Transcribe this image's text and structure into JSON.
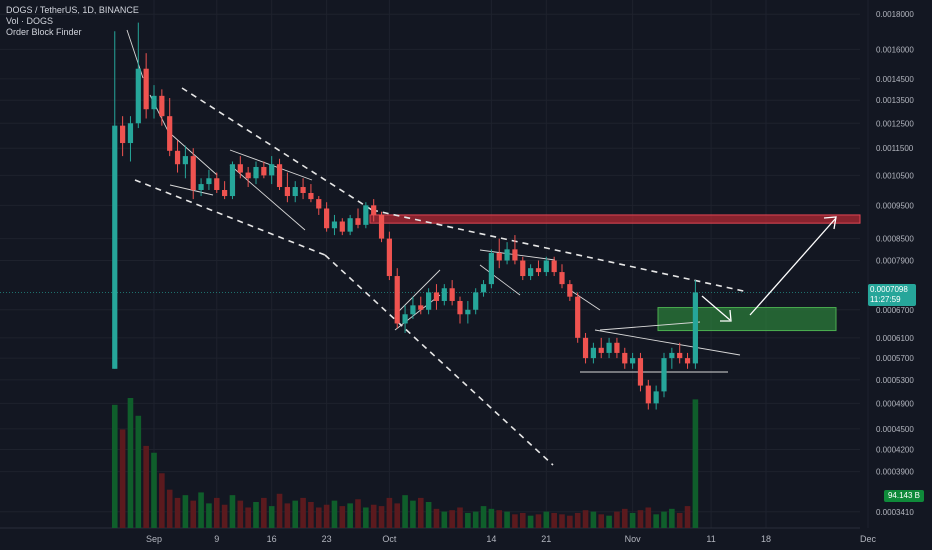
{
  "legend": {
    "symbol": "DOGS / TetherUS, 1D, BINANCE",
    "volume": "Vol · DOGS",
    "indicator": "Order Block Finder"
  },
  "colors": {
    "background": "#131722",
    "bull": "#26a69a",
    "bear": "#ef5350",
    "vol_bull": "#0f5e2b",
    "vol_bear": "#5b1a1e",
    "resistance_zone": "#b22833",
    "support_zone": "#2e8b3e"
  },
  "price_tag": {
    "price": "0.0007098",
    "countdown": "11:27:59"
  },
  "volume_tag": "94.143 B",
  "chart_data": {
    "type": "candlestick",
    "yaxis": {
      "ticks": [
        "0.0018000",
        "0.0016000",
        "0.0014500",
        "0.0013500",
        "0.0012500",
        "0.0011500",
        "0.0010500",
        "0.0009500",
        "0.0008500",
        "0.0007900",
        "0.0006700",
        "0.0006100",
        "0.0005700",
        "0.0005300",
        "0.0004900",
        "0.0004500",
        "0.0004200",
        "0.0003900",
        "0.0003410"
      ],
      "scale": "log",
      "range": [
        0.000323,
        0.00185
      ]
    },
    "xaxis": {
      "ticks": [
        "Sep",
        "9",
        "16",
        "23",
        "Oct",
        "14",
        "21",
        "Nov",
        "11",
        "18",
        "Dec"
      ]
    },
    "candles": [
      {
        "d": "2024-08-27",
        "o": 0.00055,
        "h": 0.0017,
        "l": 0.00055,
        "c": 0.00124
      },
      {
        "d": "2024-08-28",
        "o": 0.00124,
        "h": 0.00128,
        "l": 0.00112,
        "c": 0.00117
      },
      {
        "d": "2024-08-29",
        "o": 0.00117,
        "h": 0.00128,
        "l": 0.0011,
        "c": 0.00125
      },
      {
        "d": "2024-08-30",
        "o": 0.00125,
        "h": 0.00175,
        "l": 0.00123,
        "c": 0.0015
      },
      {
        "d": "2024-08-31",
        "o": 0.0015,
        "h": 0.00158,
        "l": 0.00127,
        "c": 0.00131
      },
      {
        "d": "2024-09-01",
        "o": 0.00131,
        "h": 0.00142,
        "l": 0.00127,
        "c": 0.00137
      },
      {
        "d": "2024-09-02",
        "o": 0.00137,
        "h": 0.0014,
        "l": 0.00124,
        "c": 0.00128
      },
      {
        "d": "2024-09-03",
        "o": 0.00128,
        "h": 0.00136,
        "l": 0.00112,
        "c": 0.00114
      },
      {
        "d": "2024-09-04",
        "o": 0.00114,
        "h": 0.00118,
        "l": 0.00106,
        "c": 0.00109
      },
      {
        "d": "2024-09-05",
        "o": 0.00109,
        "h": 0.00116,
        "l": 0.00104,
        "c": 0.00112
      },
      {
        "d": "2024-09-06",
        "o": 0.00112,
        "h": 0.00115,
        "l": 0.00097,
        "c": 0.001
      },
      {
        "d": "2024-09-07",
        "o": 0.001,
        "h": 0.00104,
        "l": 0.00098,
        "c": 0.00102
      },
      {
        "d": "2024-09-08",
        "o": 0.00102,
        "h": 0.00107,
        "l": 0.001,
        "c": 0.00104
      },
      {
        "d": "2024-09-09",
        "o": 0.00104,
        "h": 0.00106,
        "l": 0.00099,
        "c": 0.001
      },
      {
        "d": "2024-09-10",
        "o": 0.001,
        "h": 0.00103,
        "l": 0.00097,
        "c": 0.00098
      },
      {
        "d": "2024-09-11",
        "o": 0.00098,
        "h": 0.0011,
        "l": 0.00097,
        "c": 0.00109
      },
      {
        "d": "2024-09-12",
        "o": 0.00109,
        "h": 0.00112,
        "l": 0.00104,
        "c": 0.00106
      },
      {
        "d": "2024-09-13",
        "o": 0.00106,
        "h": 0.00108,
        "l": 0.00101,
        "c": 0.00104
      },
      {
        "d": "2024-09-14",
        "o": 0.00104,
        "h": 0.0011,
        "l": 0.00102,
        "c": 0.00108
      },
      {
        "d": "2024-09-15",
        "o": 0.00108,
        "h": 0.0011,
        "l": 0.00104,
        "c": 0.00105
      },
      {
        "d": "2024-09-16",
        "o": 0.00105,
        "h": 0.00112,
        "l": 0.00102,
        "c": 0.00109
      },
      {
        "d": "2024-09-17",
        "o": 0.00109,
        "h": 0.00111,
        "l": 0.001,
        "c": 0.00101
      },
      {
        "d": "2024-09-18",
        "o": 0.00101,
        "h": 0.00106,
        "l": 0.00096,
        "c": 0.00098
      },
      {
        "d": "2024-09-19",
        "o": 0.00098,
        "h": 0.00103,
        "l": 0.00096,
        "c": 0.00101
      },
      {
        "d": "2024-09-20",
        "o": 0.00101,
        "h": 0.00104,
        "l": 0.00097,
        "c": 0.00099
      },
      {
        "d": "2024-09-21",
        "o": 0.00099,
        "h": 0.00102,
        "l": 0.00096,
        "c": 0.00097
      },
      {
        "d": "2024-09-22",
        "o": 0.00097,
        "h": 0.00098,
        "l": 0.00092,
        "c": 0.00094
      },
      {
        "d": "2024-09-23",
        "o": 0.00094,
        "h": 0.00096,
        "l": 0.00087,
        "c": 0.00088
      },
      {
        "d": "2024-09-24",
        "o": 0.00088,
        "h": 0.00092,
        "l": 0.00086,
        "c": 0.0009
      },
      {
        "d": "2024-09-25",
        "o": 0.0009,
        "h": 0.00091,
        "l": 0.00086,
        "c": 0.00087
      },
      {
        "d": "2024-09-26",
        "o": 0.00087,
        "h": 0.00092,
        "l": 0.00086,
        "c": 0.00091
      },
      {
        "d": "2024-09-27",
        "o": 0.00091,
        "h": 0.00094,
        "l": 0.00088,
        "c": 0.00089
      },
      {
        "d": "2024-09-28",
        "o": 0.00089,
        "h": 0.00096,
        "l": 0.00088,
        "c": 0.00095
      },
      {
        "d": "2024-09-29",
        "o": 0.00095,
        "h": 0.00097,
        "l": 0.0009,
        "c": 0.00092
      },
      {
        "d": "2024-09-30",
        "o": 0.00092,
        "h": 0.00093,
        "l": 0.00084,
        "c": 0.00085
      },
      {
        "d": "2024-10-01",
        "o": 0.00085,
        "h": 0.00087,
        "l": 0.00074,
        "c": 0.00075
      },
      {
        "d": "2024-10-02",
        "o": 0.00075,
        "h": 0.00077,
        "l": 0.00063,
        "c": 0.00064
      },
      {
        "d": "2024-10-03",
        "o": 0.00064,
        "h": 0.00068,
        "l": 0.00062,
        "c": 0.00066
      },
      {
        "d": "2024-10-04",
        "o": 0.00066,
        "h": 0.0007,
        "l": 0.00065,
        "c": 0.00068
      },
      {
        "d": "2024-10-05",
        "o": 0.00068,
        "h": 0.0007,
        "l": 0.00066,
        "c": 0.00067
      },
      {
        "d": "2024-10-06",
        "o": 0.00067,
        "h": 0.00072,
        "l": 0.00066,
        "c": 0.00071
      },
      {
        "d": "2024-10-07",
        "o": 0.00071,
        "h": 0.00073,
        "l": 0.00067,
        "c": 0.00069
      },
      {
        "d": "2024-10-08",
        "o": 0.00069,
        "h": 0.00073,
        "l": 0.00068,
        "c": 0.00072
      },
      {
        "d": "2024-10-09",
        "o": 0.00072,
        "h": 0.00074,
        "l": 0.00068,
        "c": 0.00069
      },
      {
        "d": "2024-10-10",
        "o": 0.00069,
        "h": 0.0007,
        "l": 0.00064,
        "c": 0.00066
      },
      {
        "d": "2024-10-11",
        "o": 0.00066,
        "h": 0.00069,
        "l": 0.00064,
        "c": 0.00067
      },
      {
        "d": "2024-10-12",
        "o": 0.00067,
        "h": 0.00072,
        "l": 0.00066,
        "c": 0.00071
      },
      {
        "d": "2024-10-13",
        "o": 0.00071,
        "h": 0.00074,
        "l": 0.0007,
        "c": 0.00073
      },
      {
        "d": "2024-10-14",
        "o": 0.00073,
        "h": 0.00082,
        "l": 0.00072,
        "c": 0.00081
      },
      {
        "d": "2024-10-15",
        "o": 0.00081,
        "h": 0.00085,
        "l": 0.00077,
        "c": 0.00079
      },
      {
        "d": "2024-10-16",
        "o": 0.00079,
        "h": 0.00084,
        "l": 0.00078,
        "c": 0.00082
      },
      {
        "d": "2024-10-17",
        "o": 0.00082,
        "h": 0.00086,
        "l": 0.00078,
        "c": 0.00079
      },
      {
        "d": "2024-10-18",
        "o": 0.00079,
        "h": 0.0008,
        "l": 0.00074,
        "c": 0.00075
      },
      {
        "d": "2024-10-19",
        "o": 0.00075,
        "h": 0.00078,
        "l": 0.00074,
        "c": 0.00077
      },
      {
        "d": "2024-10-20",
        "o": 0.00077,
        "h": 0.00079,
        "l": 0.00075,
        "c": 0.00076
      },
      {
        "d": "2024-10-21",
        "o": 0.00076,
        "h": 0.0008,
        "l": 0.00075,
        "c": 0.00079
      },
      {
        "d": "2024-10-22",
        "o": 0.00079,
        "h": 0.0008,
        "l": 0.00075,
        "c": 0.00076
      },
      {
        "d": "2024-10-23",
        "o": 0.00076,
        "h": 0.00078,
        "l": 0.00072,
        "c": 0.00073
      },
      {
        "d": "2024-10-24",
        "o": 0.00073,
        "h": 0.00074,
        "l": 0.00069,
        "c": 0.0007
      },
      {
        "d": "2024-10-25",
        "o": 0.0007,
        "h": 0.00071,
        "l": 0.0006,
        "c": 0.00061
      },
      {
        "d": "2024-10-26",
        "o": 0.00061,
        "h": 0.00062,
        "l": 0.00056,
        "c": 0.00057
      },
      {
        "d": "2024-10-27",
        "o": 0.00057,
        "h": 0.0006,
        "l": 0.00056,
        "c": 0.00059
      },
      {
        "d": "2024-10-28",
        "o": 0.00059,
        "h": 0.00061,
        "l": 0.00057,
        "c": 0.00058
      },
      {
        "d": "2024-10-29",
        "o": 0.00058,
        "h": 0.00061,
        "l": 0.00057,
        "c": 0.0006
      },
      {
        "d": "2024-10-30",
        "o": 0.0006,
        "h": 0.00061,
        "l": 0.00057,
        "c": 0.00058
      },
      {
        "d": "2024-10-31",
        "o": 0.00058,
        "h": 0.00059,
        "l": 0.00055,
        "c": 0.00056
      },
      {
        "d": "2024-11-01",
        "o": 0.00056,
        "h": 0.00058,
        "l": 0.00055,
        "c": 0.00057
      },
      {
        "d": "2024-11-02",
        "o": 0.00057,
        "h": 0.00058,
        "l": 0.00051,
        "c": 0.00052
      },
      {
        "d": "2024-11-03",
        "o": 0.00052,
        "h": 0.00053,
        "l": 0.00048,
        "c": 0.00049
      },
      {
        "d": "2024-11-04",
        "o": 0.00049,
        "h": 0.00052,
        "l": 0.00048,
        "c": 0.00051
      },
      {
        "d": "2024-11-05",
        "o": 0.00051,
        "h": 0.00058,
        "l": 0.0005,
        "c": 0.00057
      },
      {
        "d": "2024-11-06",
        "o": 0.00057,
        "h": 0.00059,
        "l": 0.00055,
        "c": 0.00058
      },
      {
        "d": "2024-11-07",
        "o": 0.00058,
        "h": 0.0006,
        "l": 0.00056,
        "c": 0.00057
      },
      {
        "d": "2024-11-08",
        "o": 0.00057,
        "h": 0.00058,
        "l": 0.00055,
        "c": 0.00056
      },
      {
        "d": "2024-11-09",
        "o": 0.00056,
        "h": 0.00074,
        "l": 0.00055,
        "c": 0.00071
      }
    ],
    "volume_values": [
      90,
      72,
      95,
      82,
      60,
      55,
      40,
      28,
      22,
      24,
      20,
      26,
      18,
      22,
      17,
      24,
      20,
      15,
      19,
      22,
      16,
      25,
      18,
      20,
      22,
      19,
      15,
      17,
      20,
      16,
      18,
      21,
      15,
      17,
      16,
      22,
      18,
      24,
      20,
      22,
      19,
      14,
      12,
      13,
      15,
      11,
      12,
      16,
      14,
      13,
      12,
      10,
      11,
      9,
      10,
      12,
      11,
      10,
      9,
      11,
      13,
      12,
      10,
      9,
      12,
      14,
      11,
      13,
      15,
      10,
      12,
      14,
      11,
      16,
      94
    ],
    "annotations": {
      "resistance_zone": [
        0.000895,
        0.00092
      ],
      "support_zone": [
        0.000625,
        0.000675
      ],
      "last_price": 0.0007098
    }
  }
}
